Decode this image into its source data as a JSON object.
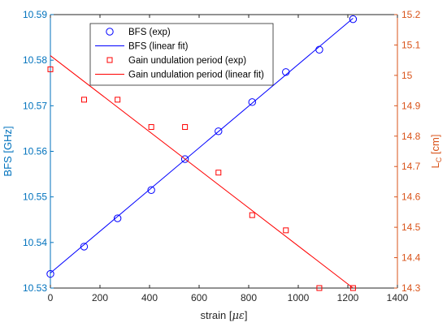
{
  "chart_data": {
    "type": "scatter",
    "xlabel": "strain  [",
    "xlabel_unit": "με",
    "xlabel_close": "]",
    "ylabel_left": "BFS [GHz]",
    "ylabel_right_main": "L",
    "ylabel_right_sub": "C",
    "ylabel_right_unit": " [cm]",
    "xlim": [
      0,
      1400
    ],
    "ylim_left": [
      10.53,
      10.59
    ],
    "ylim_right": [
      14.3,
      15.2
    ],
    "xticks": [
      "0",
      "200",
      "400",
      "600",
      "800",
      "1000",
      "1200",
      "1400"
    ],
    "yticks_left": [
      "10.53",
      "10.54",
      "10.55",
      "10.56",
      "10.57",
      "10.58",
      "10.59"
    ],
    "yticks_right": [
      "14.3",
      "14.4",
      "14.5",
      "14.6",
      "14.7",
      "14.8",
      "14.9",
      "15",
      "15.1",
      "15.2"
    ],
    "colors": {
      "left_axis": "#0072BD",
      "right_axis": "#D95319",
      "bfs": "#0000FF",
      "gain": "#FF0000"
    },
    "legend_position": "top-left-center",
    "series": [
      {
        "name": "BFS (exp)",
        "axis": "left",
        "marker": "circle",
        "x": [
          0,
          136,
          271,
          407,
          543,
          678,
          814,
          950,
          1085,
          1221
        ],
        "y": [
          10.5331,
          10.5391,
          10.5453,
          10.5515,
          10.5583,
          10.5644,
          10.5708,
          10.5774,
          10.5823,
          10.589
        ]
      },
      {
        "name": "BFS (linear fit)",
        "axis": "left",
        "marker": "line",
        "x": [
          0,
          1221
        ],
        "y": [
          10.5333,
          10.5892
        ]
      },
      {
        "name": "Gain undulation period (exp)",
        "axis": "right",
        "marker": "square",
        "x": [
          0,
          136,
          271,
          407,
          543,
          678,
          814,
          950,
          1085,
          1221
        ],
        "y": [
          15.02,
          14.92,
          14.92,
          14.83,
          14.83,
          14.68,
          14.54,
          14.49,
          14.3,
          14.3
        ]
      },
      {
        "name": "Gain undulation period (linear fit)",
        "axis": "right",
        "marker": "line",
        "x": [
          0,
          1221
        ],
        "y": [
          15.065,
          14.3
        ]
      }
    ]
  }
}
